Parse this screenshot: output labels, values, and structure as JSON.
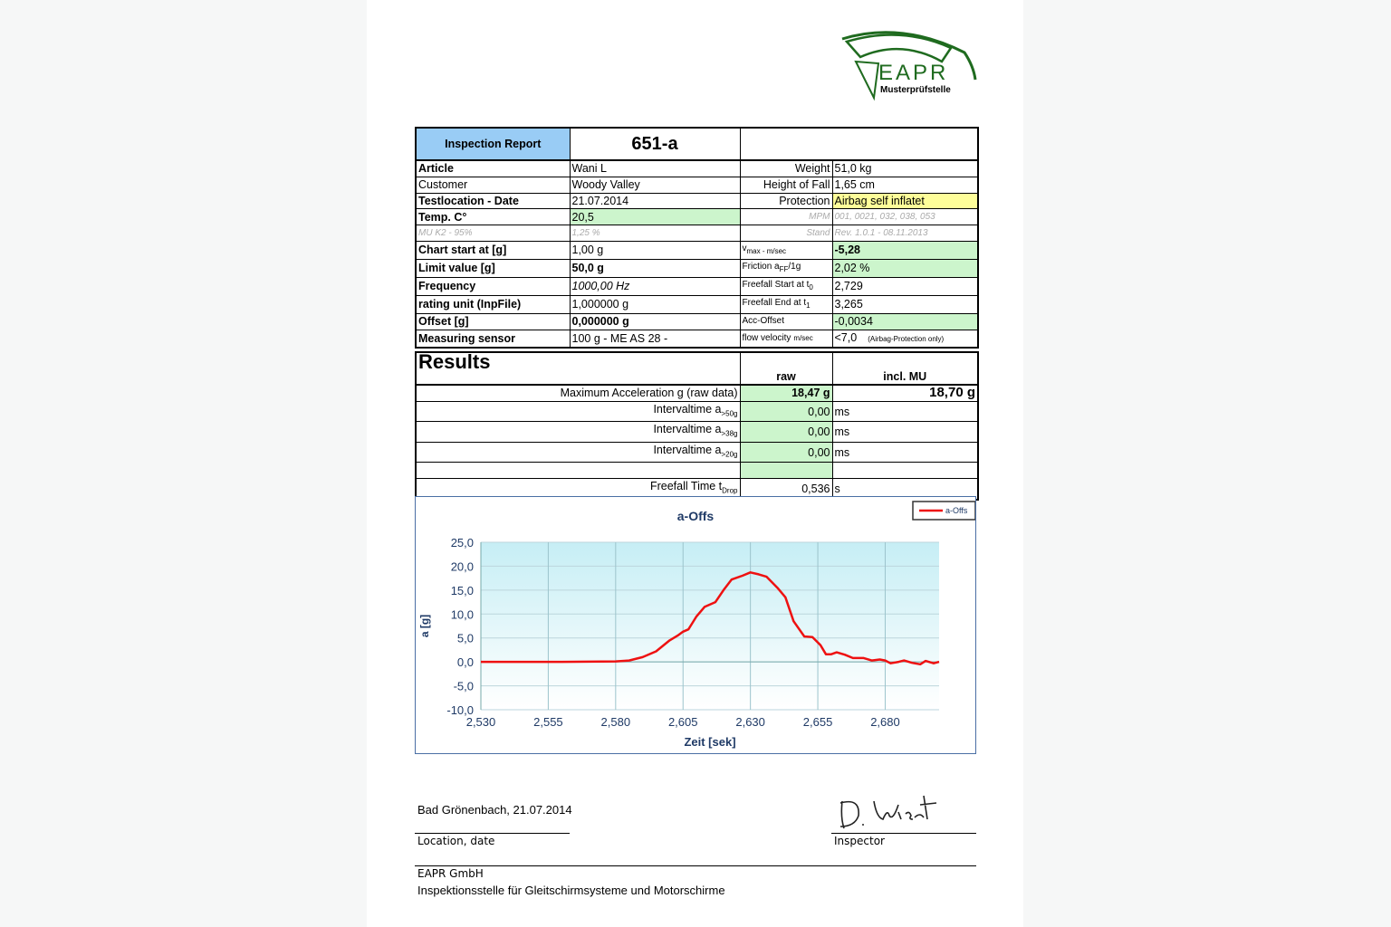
{
  "logo": {
    "text": "EAPR",
    "subtitle": "Musterprüfstelle"
  },
  "header": {
    "title": "Inspection Report",
    "number": "651-a"
  },
  "info_rows": [
    {
      "label": "Article",
      "value": "Wani L",
      "rlabel": "Weight",
      "rvalue": "51,0 kg"
    },
    {
      "label": "Customer",
      "value": "Woody Valley",
      "rlabel": "Height of Fall",
      "rvalue": "1,65 cm"
    },
    {
      "label": "Testlocation - Date",
      "value": "21.07.2014",
      "rlabel": "Protection",
      "rvalue": "Airbag self inflatet"
    },
    {
      "label": "Temp. C°",
      "value": "20,5",
      "rlabel": "MPM",
      "rvalue": "001, 0021, 032, 038, 053"
    },
    {
      "label": "MU K2 - 95%",
      "value": "1,25 %",
      "rlabel": "Stand",
      "rvalue": "Rev. 1.0.1 - 08.11.2013"
    },
    {
      "label": "Chart start at [g]",
      "value": "1,00 g",
      "rlabel": "v",
      "rlabel_sub": "max - m/sec",
      "rvalue": "-5,28"
    },
    {
      "label": "Limit value [g]",
      "value": "50,0 g",
      "rlabel": "Friction a",
      "rlabel_sub": "FF",
      "rlabel_tail": "/1g",
      "rvalue": "2,02 %"
    },
    {
      "label": "Frequency",
      "value": "1000,00 Hz",
      "rlabel": "Freefall Start at t",
      "rlabel_sub": "0",
      "rvalue": "2,729"
    },
    {
      "label": "rating unit (InpFile)",
      "value": "1,000000 g",
      "rlabel": "Freefall End at t",
      "rlabel_sub": "1",
      "rvalue": "3,265"
    },
    {
      "label": "Offset [g]",
      "value": "0,000000 g",
      "rlabel": "Acc-Offset",
      "rvalue": "-0,0034"
    },
    {
      "label": "Measuring sensor",
      "value": "100 g - ME AS 28 -",
      "rlabel": "flow velocity",
      "rlabel_sub2": "m/sec",
      "rvalue": "<7,0",
      "rnote": "(Airbag-Protection only)"
    }
  ],
  "results": {
    "title": "Results",
    "col_raw": "raw",
    "col_mu": "incl. MU",
    "rows": [
      {
        "label": "Maximum Acceleration g (raw data)",
        "raw": "18,47 g",
        "mu": "18,70 g"
      },
      {
        "label": "Intervaltime a",
        "sub": ">50g",
        "raw": "0,00",
        "mu": "ms"
      },
      {
        "label": "Intervaltime a",
        "sub": ">38g",
        "raw": "0,00",
        "mu": "ms"
      },
      {
        "label": "Intervaltime a",
        "sub": ">20g",
        "raw": "0,00",
        "mu": "ms"
      },
      {
        "label": "",
        "raw": "",
        "mu": ""
      },
      {
        "label": "Freefall Time t",
        "sub": "Drop",
        "raw": "0,536",
        "mu": "s"
      }
    ]
  },
  "chart_data": {
    "type": "line",
    "title": "a-Offs",
    "xlabel": "Zeit [sek]",
    "ylabel": "a [g]",
    "xlim": [
      2.53,
      2.7
    ],
    "ylim": [
      -10,
      25
    ],
    "xticks": [
      "2,530",
      "2,555",
      "2,580",
      "2,605",
      "2,630",
      "2,655",
      "2,680"
    ],
    "yticks": [
      "25,0",
      "20,0",
      "15,0",
      "10,0",
      "5,0",
      "0,0",
      "-5,0",
      "-10,0"
    ],
    "grid": true,
    "legend": "top-right",
    "color": "#ee1111",
    "series": [
      {
        "name": "a-Offs",
        "x": [
          2.53,
          2.56,
          2.58,
          2.585,
          2.59,
          2.595,
          2.6,
          2.603,
          2.605,
          2.607,
          2.61,
          2.613,
          2.617,
          2.62,
          2.623,
          2.627,
          2.63,
          2.633,
          2.636,
          2.64,
          2.643,
          2.646,
          2.65,
          2.653,
          2.656,
          2.658,
          2.66,
          2.662,
          2.665,
          2.668,
          2.672,
          2.675,
          2.678,
          2.68,
          2.682,
          2.685,
          2.687,
          2.69,
          2.693,
          2.695,
          2.698,
          2.7
        ],
        "y": [
          0,
          0,
          0.1,
          0.3,
          1.0,
          2.2,
          4.5,
          5.5,
          6.3,
          6.8,
          9.5,
          11.5,
          12.5,
          15.0,
          17.2,
          18.0,
          18.7,
          18.3,
          17.8,
          15.5,
          13.5,
          8.5,
          5.3,
          5.2,
          3.5,
          1.6,
          1.6,
          2.0,
          1.5,
          0.8,
          0.8,
          0.3,
          0.5,
          0.3,
          -0.3,
          0,
          0.3,
          -0.2,
          -0.5,
          0.2,
          -0.3,
          0
        ]
      }
    ]
  },
  "footer": {
    "location_date": "Bad Grönenbach, 21.07.2014",
    "location_label": "Location, date",
    "inspector_label": "Inspector",
    "signature": "D. Wiest",
    "company": "EAPR GmbH",
    "company_desc": "Inspektionsstelle für Gleitschirmsysteme und Motorschirme"
  }
}
